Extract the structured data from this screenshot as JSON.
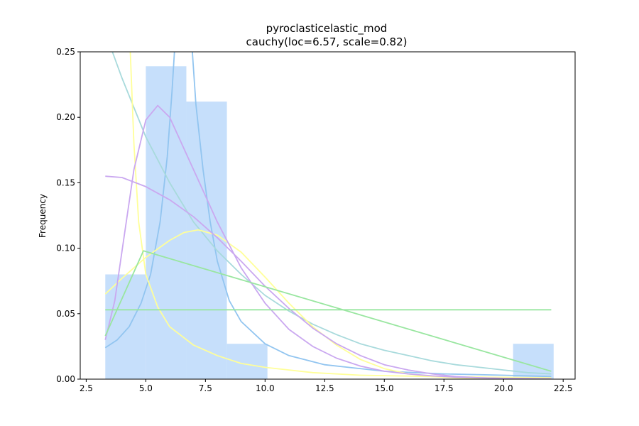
{
  "chart_data": {
    "type": "bar",
    "title": "pyroclasticelastic_mod",
    "subtitle": "cauchy(loc=6.57, scale=0.82)",
    "xlabel": "",
    "ylabel": "Frequency",
    "xlim": [
      2.25,
      23.0
    ],
    "ylim": [
      0,
      0.25
    ],
    "xticks": [
      2.5,
      5.0,
      7.5,
      10.0,
      12.5,
      15.0,
      17.5,
      20.0,
      22.5
    ],
    "yticks": [
      0.0,
      0.05,
      0.1,
      0.15,
      0.2,
      0.25
    ],
    "xtick_labels": [
      "2.5",
      "5.0",
      "7.5",
      "10.0",
      "12.5",
      "15.0",
      "17.5",
      "20.0",
      "22.5"
    ],
    "ytick_labels": [
      "0.00",
      "0.05",
      "0.10",
      "0.15",
      "0.20",
      "0.25"
    ],
    "grid": false,
    "histogram": {
      "color": "#c6dffb",
      "bins": [
        {
          "x0": 3.3,
          "x1": 5.0,
          "value": 0.08
        },
        {
          "x0": 5.0,
          "x1": 6.7,
          "value": 0.239
        },
        {
          "x0": 6.7,
          "x1": 8.4,
          "value": 0.212
        },
        {
          "x0": 8.4,
          "x1": 10.1,
          "value": 0.027
        },
        {
          "x0": 20.4,
          "x1": 22.1,
          "value": 0.027
        }
      ]
    },
    "series": [
      {
        "color": "#92c5f0",
        "points": [
          [
            3.3,
            0.024
          ],
          [
            3.8,
            0.03
          ],
          [
            4.3,
            0.04
          ],
          [
            4.8,
            0.058
          ],
          [
            5.2,
            0.08
          ],
          [
            5.6,
            0.12
          ],
          [
            5.9,
            0.17
          ],
          [
            6.1,
            0.22
          ],
          [
            6.2,
            0.25
          ]
        ]
      },
      {
        "color": "#92c5f0",
        "points": [
          [
            6.95,
            0.25
          ],
          [
            7.1,
            0.21
          ],
          [
            7.4,
            0.16
          ],
          [
            7.7,
            0.12
          ],
          [
            8.0,
            0.09
          ],
          [
            8.5,
            0.06
          ],
          [
            9.0,
            0.044
          ],
          [
            10.0,
            0.027
          ],
          [
            11.0,
            0.018
          ],
          [
            12.5,
            0.011
          ],
          [
            15.0,
            0.006
          ],
          [
            17.5,
            0.004
          ],
          [
            20.0,
            0.003
          ],
          [
            22.0,
            0.002
          ]
        ]
      },
      {
        "color": "#a8dadc",
        "points": [
          [
            3.6,
            0.25
          ],
          [
            4.0,
            0.23
          ],
          [
            5.0,
            0.185
          ],
          [
            6.0,
            0.15
          ],
          [
            7.0,
            0.12
          ],
          [
            8.0,
            0.098
          ],
          [
            9.0,
            0.08
          ],
          [
            10.0,
            0.064
          ],
          [
            11.0,
            0.052
          ],
          [
            12.0,
            0.042
          ],
          [
            13.0,
            0.034
          ],
          [
            14.0,
            0.027
          ],
          [
            15.0,
            0.022
          ],
          [
            16.0,
            0.018
          ],
          [
            17.0,
            0.014
          ],
          [
            18.0,
            0.011
          ],
          [
            19.0,
            0.009
          ],
          [
            20.0,
            0.007
          ],
          [
            21.0,
            0.005
          ],
          [
            22.0,
            0.004
          ]
        ]
      },
      {
        "color": "#ffff99",
        "points": [
          [
            4.35,
            0.25
          ],
          [
            4.5,
            0.18
          ],
          [
            4.7,
            0.12
          ],
          [
            5.0,
            0.08
          ],
          [
            5.5,
            0.055
          ],
          [
            6.0,
            0.04
          ],
          [
            7.0,
            0.026
          ],
          [
            8.0,
            0.018
          ],
          [
            9.0,
            0.012
          ],
          [
            10.0,
            0.009
          ],
          [
            12.0,
            0.005
          ],
          [
            14.0,
            0.003
          ],
          [
            17.0,
            0.002
          ],
          [
            22.0,
            0.001
          ]
        ]
      },
      {
        "color": "#ffff99",
        "points": [
          [
            3.3,
            0.065
          ],
          [
            4.0,
            0.077
          ],
          [
            5.0,
            0.093
          ],
          [
            6.0,
            0.106
          ],
          [
            6.6,
            0.112
          ],
          [
            7.2,
            0.114
          ],
          [
            8.0,
            0.11
          ],
          [
            9.0,
            0.097
          ],
          [
            10.0,
            0.078
          ],
          [
            11.0,
            0.058
          ],
          [
            12.0,
            0.04
          ],
          [
            13.0,
            0.026
          ],
          [
            14.0,
            0.015
          ],
          [
            15.0,
            0.008
          ],
          [
            16.0,
            0.004
          ],
          [
            17.0,
            0.002
          ],
          [
            18.0,
            0.001
          ],
          [
            19.0,
            0.0005
          ],
          [
            22.0,
            0.0
          ]
        ]
      },
      {
        "color": "#caa8f0",
        "points": [
          [
            3.3,
            0.03
          ],
          [
            3.7,
            0.06
          ],
          [
            4.1,
            0.11
          ],
          [
            4.5,
            0.16
          ],
          [
            5.0,
            0.198
          ],
          [
            5.5,
            0.209
          ],
          [
            6.0,
            0.2
          ],
          [
            7.0,
            0.16
          ],
          [
            8.0,
            0.12
          ],
          [
            9.0,
            0.085
          ],
          [
            10.0,
            0.058
          ],
          [
            11.0,
            0.038
          ],
          [
            12.0,
            0.025
          ],
          [
            13.0,
            0.016
          ],
          [
            14.0,
            0.01
          ],
          [
            15.0,
            0.006
          ],
          [
            16.0,
            0.004
          ],
          [
            17.0,
            0.0025
          ],
          [
            18.0,
            0.0015
          ],
          [
            20.0,
            0.0006
          ],
          [
            22.0,
            0.0002
          ]
        ]
      },
      {
        "color": "#caa8f0",
        "points": [
          [
            3.3,
            0.155
          ],
          [
            4.0,
            0.154
          ],
          [
            5.0,
            0.147
          ],
          [
            6.0,
            0.137
          ],
          [
            7.0,
            0.124
          ],
          [
            8.0,
            0.108
          ],
          [
            9.0,
            0.09
          ],
          [
            10.0,
            0.071
          ],
          [
            11.0,
            0.054
          ],
          [
            12.0,
            0.039
          ],
          [
            13.0,
            0.027
          ],
          [
            14.0,
            0.018
          ],
          [
            15.0,
            0.011
          ],
          [
            16.0,
            0.007
          ],
          [
            17.0,
            0.004
          ],
          [
            18.0,
            0.002
          ],
          [
            19.0,
            0.001
          ],
          [
            20.0,
            0.0006
          ],
          [
            22.0,
            0.0002
          ]
        ]
      },
      {
        "color": "#99e6a0",
        "points": [
          [
            3.3,
            0.033
          ],
          [
            4.9,
            0.098
          ],
          [
            22.0,
            0.006
          ]
        ]
      },
      {
        "color": "#99e6a0",
        "points": [
          [
            3.3,
            0.053
          ],
          [
            22.0,
            0.053
          ]
        ]
      }
    ]
  }
}
